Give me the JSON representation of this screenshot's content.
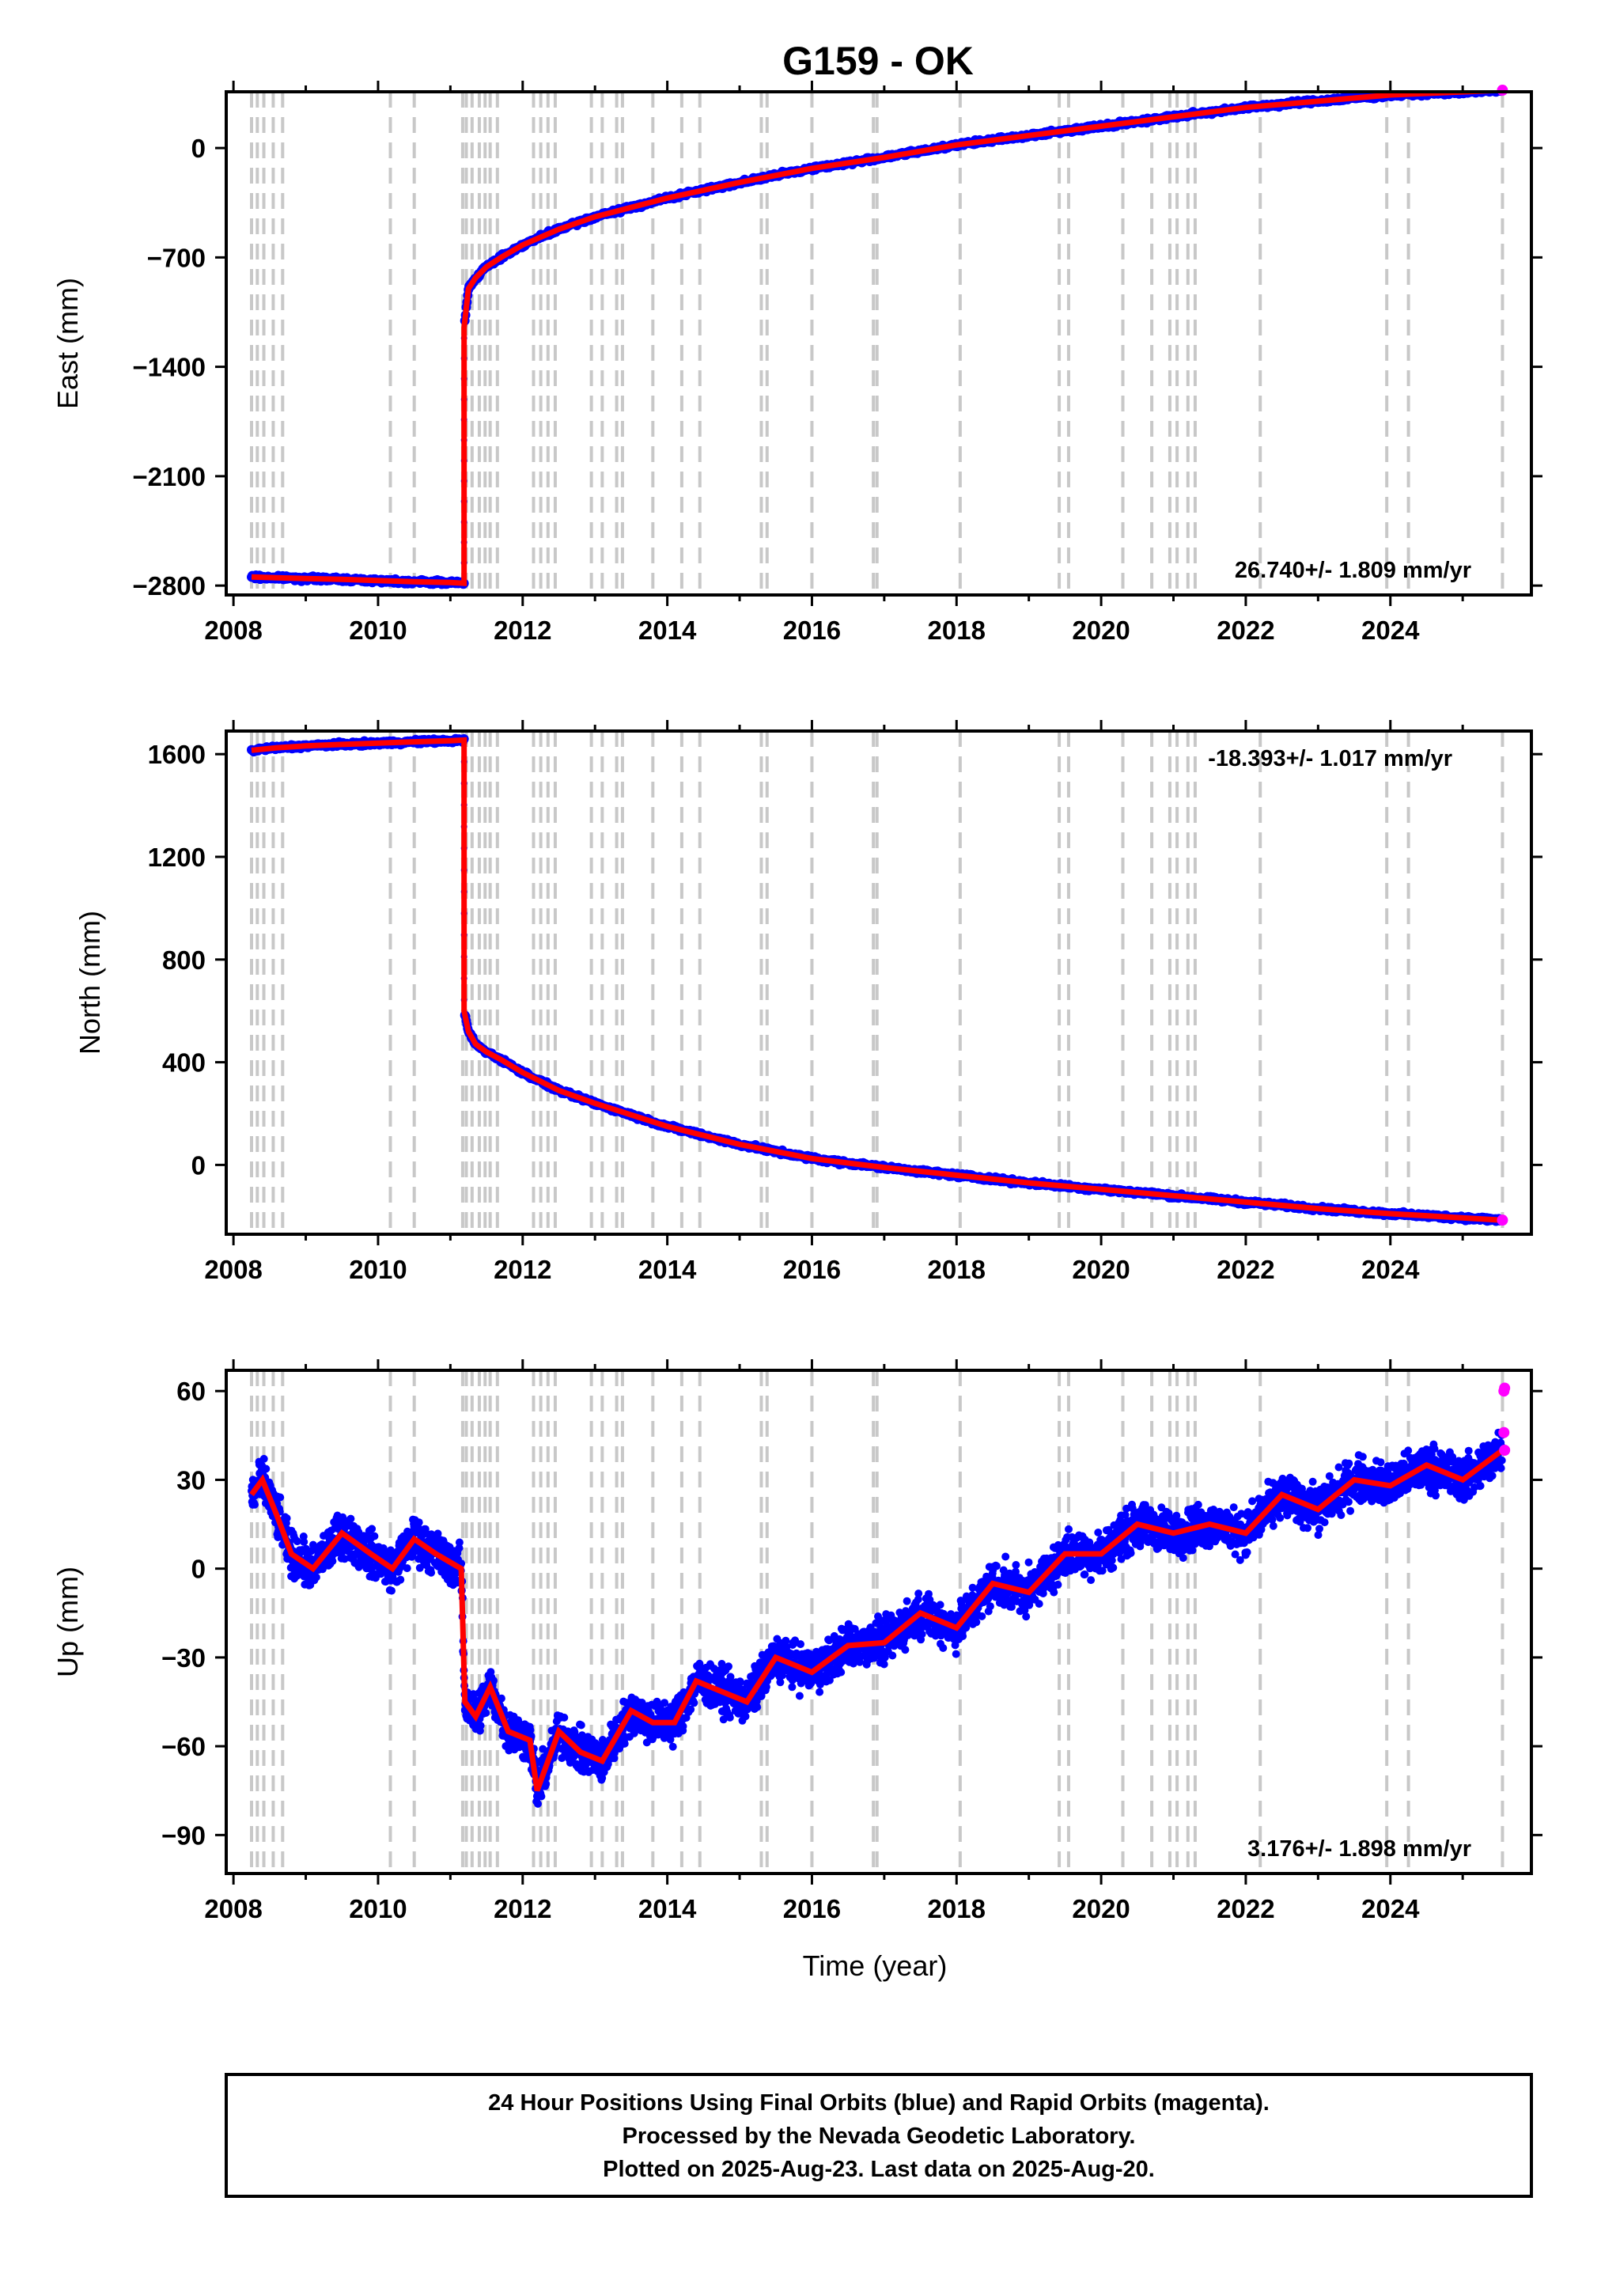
{
  "title": "G159 - OK",
  "xlabel": "Time (year)",
  "footer": {
    "line1": "24 Hour Positions Using Final Orbits (blue) and Rapid Orbits (magenta).",
    "line2": "Processed by the Nevada Geodetic Laboratory.",
    "line3": "Plotted on 2025-Aug-23. Last data on 2025-Aug-20."
  },
  "colors": {
    "final": "#0000ff",
    "rapid": "#ff00ff",
    "model": "#ff0000",
    "events": "#c8c8c8"
  },
  "chart_data": [
    {
      "type": "scatter",
      "ylabel": "East (mm)",
      "rate_label": "26.740+/- 1.809 mm/yr",
      "xlim": [
        2007.9,
        2025.95
      ],
      "ylim": [
        -2860,
        360
      ],
      "x_ticks": [
        2008,
        2010,
        2012,
        2014,
        2016,
        2018,
        2020,
        2022,
        2024
      ],
      "y_ticks": [
        0,
        -700,
        -1400,
        -2100,
        -2800
      ],
      "series": [
        {
          "values": [
            [
              2008.25,
              -2745
            ],
            [
              2008.6,
              -2750
            ],
            [
              2009.0,
              -2755
            ],
            [
              2009.5,
              -2760
            ],
            [
              2010.0,
              -2768
            ],
            [
              2010.5,
              -2775
            ],
            [
              2011.0,
              -2780
            ],
            [
              2011.19,
              -2785
            ],
            [
              2011.19,
              -1150
            ],
            [
              2011.25,
              -900
            ],
            [
              2011.35,
              -830
            ],
            [
              2011.5,
              -760
            ],
            [
              2011.7,
              -700
            ],
            [
              2012.0,
              -620
            ],
            [
              2012.5,
              -520
            ],
            [
              2013.0,
              -440
            ],
            [
              2014.0,
              -320
            ],
            [
              2015.0,
              -220
            ],
            [
              2016.0,
              -130
            ],
            [
              2017.0,
              -60
            ],
            [
              2018.0,
              20
            ],
            [
              2019.0,
              80
            ],
            [
              2020.0,
              140
            ],
            [
              2021.0,
              200
            ],
            [
              2022.0,
              260
            ],
            [
              2023.0,
              300
            ],
            [
              2024.0,
              340
            ],
            [
              2025.55,
              370
            ]
          ]
        }
      ]
    },
    {
      "type": "scatter",
      "ylabel": "North (mm)",
      "rate_label": "-18.393+/- 1.017 mm/yr",
      "xlim": [
        2007.9,
        2025.95
      ],
      "ylim": [
        -270,
        1690
      ],
      "x_ticks": [
        2008,
        2010,
        2012,
        2014,
        2016,
        2018,
        2020,
        2022,
        2024
      ],
      "y_ticks": [
        1600,
        1200,
        800,
        400,
        0
      ],
      "series": [
        {
          "values": [
            [
              2008.25,
              1615
            ],
            [
              2008.6,
              1625
            ],
            [
              2009.0,
              1632
            ],
            [
              2009.5,
              1638
            ],
            [
              2010.0,
              1643
            ],
            [
              2010.5,
              1648
            ],
            [
              2011.0,
              1652
            ],
            [
              2011.19,
              1655
            ],
            [
              2011.19,
              600
            ],
            [
              2011.25,
              520
            ],
            [
              2011.35,
              470
            ],
            [
              2011.5,
              440
            ],
            [
              2011.7,
              410
            ],
            [
              2012.0,
              360
            ],
            [
              2012.5,
              290
            ],
            [
              2013.0,
              240
            ],
            [
              2014.0,
              150
            ],
            [
              2015.0,
              80
            ],
            [
              2016.0,
              25
            ],
            [
              2017.0,
              -10
            ],
            [
              2018.0,
              -40
            ],
            [
              2019.0,
              -70
            ],
            [
              2020.0,
              -95
            ],
            [
              2021.0,
              -120
            ],
            [
              2022.0,
              -145
            ],
            [
              2023.0,
              -170
            ],
            [
              2024.0,
              -190
            ],
            [
              2025.55,
              -215
            ]
          ]
        }
      ]
    },
    {
      "type": "scatter",
      "ylabel": "Up (mm)",
      "rate_label": "3.176+/- 1.898 mm/yr",
      "xlim": [
        2007.9,
        2025.95
      ],
      "ylim": [
        -103,
        67
      ],
      "x_ticks": [
        2008,
        2010,
        2012,
        2014,
        2016,
        2018,
        2020,
        2022,
        2024
      ],
      "y_ticks": [
        60,
        30,
        0,
        -30,
        -60,
        -90
      ],
      "series": [
        {
          "values": [
            [
              2008.25,
              25
            ],
            [
              2008.4,
              30
            ],
            [
              2008.6,
              18
            ],
            [
              2008.8,
              5
            ],
            [
              2009.1,
              0
            ],
            [
              2009.5,
              12
            ],
            [
              2009.9,
              5
            ],
            [
              2010.2,
              0
            ],
            [
              2010.5,
              10
            ],
            [
              2010.8,
              5
            ],
            [
              2011.15,
              0
            ],
            [
              2011.2,
              -45
            ],
            [
              2011.35,
              -50
            ],
            [
              2011.55,
              -40
            ],
            [
              2011.8,
              -55
            ],
            [
              2012.1,
              -58
            ],
            [
              2012.2,
              -75
            ],
            [
              2012.5,
              -55
            ],
            [
              2012.8,
              -62
            ],
            [
              2013.1,
              -65
            ],
            [
              2013.5,
              -48
            ],
            [
              2013.8,
              -52
            ],
            [
              2014.1,
              -52
            ],
            [
              2014.4,
              -38
            ],
            [
              2014.8,
              -42
            ],
            [
              2015.1,
              -45
            ],
            [
              2015.5,
              -30
            ],
            [
              2016.0,
              -35
            ],
            [
              2016.5,
              -26
            ],
            [
              2017.0,
              -25
            ],
            [
              2017.5,
              -15
            ],
            [
              2018.0,
              -20
            ],
            [
              2018.5,
              -5
            ],
            [
              2019.0,
              -8
            ],
            [
              2019.5,
              5
            ],
            [
              2020.0,
              5
            ],
            [
              2020.5,
              15
            ],
            [
              2021.0,
              12
            ],
            [
              2021.5,
              15
            ],
            [
              2022.0,
              12
            ],
            [
              2022.5,
              25
            ],
            [
              2023.0,
              20
            ],
            [
              2023.5,
              30
            ],
            [
              2024.0,
              28
            ],
            [
              2024.5,
              35
            ],
            [
              2025.0,
              30
            ],
            [
              2025.55,
              40
            ]
          ]
        }
      ],
      "rapid_points": [
        [
          2025.57,
          60
        ],
        [
          2025.58,
          61
        ],
        [
          2025.57,
          46
        ],
        [
          2025.58,
          40
        ]
      ]
    }
  ],
  "event_lines": [
    2008.25,
    2008.33,
    2008.42,
    2008.55,
    2008.68,
    2010.17,
    2010.5,
    2011.17,
    2011.22,
    2011.3,
    2011.4,
    2011.48,
    2011.55,
    2011.65,
    2012.15,
    2012.25,
    2012.35,
    2012.45,
    2012.95,
    2013.1,
    2013.3,
    2013.38,
    2013.8,
    2014.2,
    2014.45,
    2015.3,
    2015.38,
    2016.0,
    2016.85,
    2016.9,
    2018.05,
    2019.42,
    2019.55,
    2020.3,
    2020.7,
    2020.95,
    2021.05,
    2021.2,
    2021.3,
    2022.2,
    2023.95,
    2024.25,
    2025.55
  ]
}
